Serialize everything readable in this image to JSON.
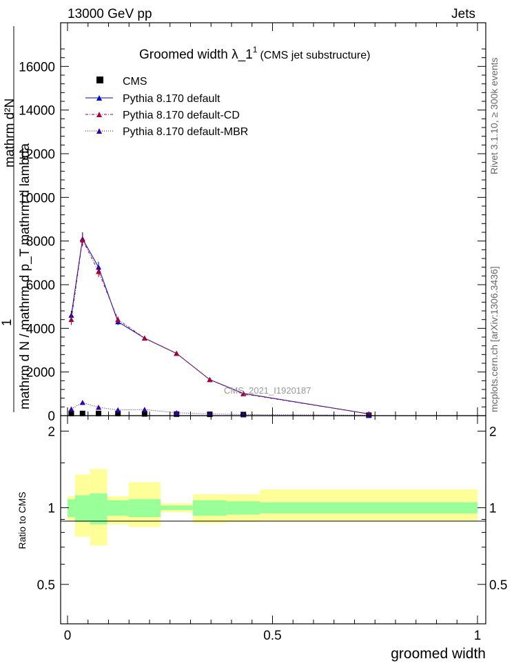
{
  "header": {
    "left": "13000 GeV pp",
    "right": "Jets"
  },
  "title_main": "Groomed width  λ_1",
  "title_sup": "1",
  "title_sub": "(CMS jet substructure)",
  "watermark": "CMS_2021_I1920187",
  "side_right_top": "Rivet 3.1.10, ≥ 300k events",
  "side_right_bottom": "mcplots.cern.ch [arXiv:1306.3436]",
  "ylabel_top_a": "1",
  "ylabel_top_b": "mathrm d N / mathrm d p_T mathrm d lambda",
  "ylabel_top_c": "mathrm d²N",
  "ylabel_ratio": "Ratio to CMS",
  "xlabel": "groomed width",
  "legend": [
    "CMS",
    "Pythia 8.170 default",
    "Pythia 8.170 default-CD",
    "Pythia 8.170 default-MBR"
  ],
  "colors": {
    "data": "#000000",
    "default": "#0000cc",
    "cd": "#aa0033",
    "mbr": "#3300aa",
    "band_inner": "#99ff99",
    "band_outer": "#ffff99"
  },
  "chart_data": [
    {
      "type": "line",
      "panel": "main",
      "xlim": [
        0,
        1
      ],
      "ylim": [
        0,
        18000
      ],
      "yticks": [
        0,
        2000,
        4000,
        6000,
        8000,
        10000,
        12000,
        14000,
        16000
      ],
      "ytick_labels": [
        "0",
        "2000",
        "4000",
        "6000",
        "8000",
        "10000",
        "12000",
        "14000",
        "16000"
      ],
      "bin_edges": [
        0,
        0.0183,
        0.0549,
        0.0966,
        0.1494,
        0.2269,
        0.3057,
        0.3879,
        0.4694,
        1.0
      ],
      "series": [
        {
          "name": "CMS",
          "x": [
            0.0092,
            0.0366,
            0.0757,
            0.123,
            0.188,
            0.266,
            0.347,
            0.429,
            0.735
          ],
          "y": [
            100,
            100,
            100,
            100,
            80,
            70,
            60,
            50,
            20
          ]
        },
        {
          "name": "Pythia 8.170 default",
          "x": [
            0.0092,
            0.0366,
            0.0757,
            0.123,
            0.188,
            0.266,
            0.347,
            0.429,
            0.735
          ],
          "y": [
            4600,
            8100,
            6800,
            4300,
            3550,
            2850,
            1650,
            1020,
            80
          ],
          "err": [
            200,
            300,
            250,
            150,
            100,
            80,
            60,
            40,
            10
          ]
        },
        {
          "name": "Pythia 8.170 default-CD",
          "x": [
            0.0092,
            0.0366,
            0.0757,
            0.123,
            0.188,
            0.266,
            0.347,
            0.429,
            0.735
          ],
          "y": [
            4400,
            8050,
            6600,
            4400,
            3550,
            2850,
            1650,
            1000,
            80
          ],
          "err": [
            250,
            300,
            250,
            150,
            100,
            80,
            60,
            40,
            10
          ]
        },
        {
          "name": "Pythia 8.170 default-MBR",
          "x": [
            0.0092,
            0.0366,
            0.0757,
            0.123,
            0.188,
            0.266,
            0.347,
            0.429,
            0.735
          ],
          "y": [
            300,
            600,
            380,
            260,
            280,
            130,
            80,
            50,
            20
          ],
          "err": [
            30,
            40,
            30,
            20,
            20,
            15,
            10,
            8,
            5
          ]
        }
      ]
    },
    {
      "type": "area",
      "panel": "ratio",
      "ylabel": "Ratio to CMS",
      "xlim": [
        0,
        1
      ],
      "ylim": [
        0.35,
        2.3
      ],
      "xticks": [
        0,
        0.5,
        1
      ],
      "xtick_labels": [
        "0",
        "0.5",
        "1"
      ],
      "yticks": [
        0.5,
        1,
        2
      ],
      "ytick_labels": [
        "0.5",
        "1",
        "2"
      ],
      "bin_edges": [
        0,
        0.0183,
        0.0549,
        0.0966,
        0.1494,
        0.2269,
        0.3057,
        0.3879,
        0.4694,
        1.0
      ],
      "band_stat_lo": [
        0.92,
        0.88,
        0.86,
        0.93,
        0.92,
        0.98,
        0.93,
        0.94,
        0.95
      ],
      "band_stat_hi": [
        1.08,
        1.12,
        1.14,
        1.07,
        1.08,
        1.02,
        1.07,
        1.06,
        1.05
      ],
      "band_total_lo": [
        0.89,
        0.77,
        0.71,
        0.86,
        0.84,
        0.96,
        0.87,
        0.88,
        0.89
      ],
      "band_total_hi": [
        1.11,
        1.35,
        1.42,
        1.11,
        1.26,
        1.04,
        1.13,
        1.13,
        1.18
      ]
    }
  ]
}
